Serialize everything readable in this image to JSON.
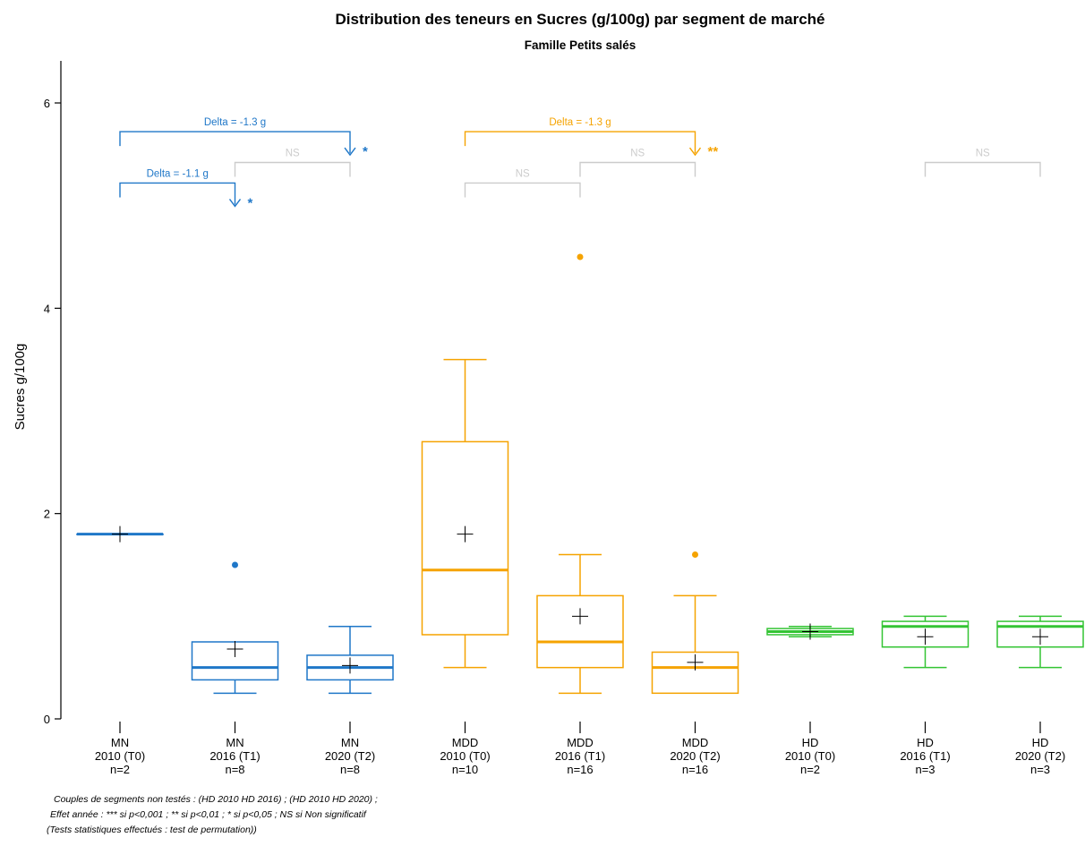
{
  "chart_data": {
    "type": "box",
    "title": "Distribution des teneurs en Sucres (g/100g) par segment de marché",
    "subtitle": "Famille Petits salés",
    "ylabel": "Sucres g/100g",
    "xlabel": "",
    "ylim": [
      0,
      6.4
    ],
    "yticks": [
      0,
      2,
      4,
      6
    ],
    "grid": false,
    "colors": {
      "MN": "#1f77c8",
      "MDD": "#f5a300",
      "HD": "#33c433",
      "NS": "#cccccc",
      "mean": "#000000"
    },
    "categories": [
      {
        "segment": "MN",
        "year": "2010 (T0)",
        "n": "n=2",
        "color_key": "MN",
        "min": 1.8,
        "q1": 1.8,
        "median": 1.8,
        "q3": 1.8,
        "max": 1.8,
        "mean": 1.8,
        "outliers": []
      },
      {
        "segment": "MN",
        "year": "2016 (T1)",
        "n": "n=8",
        "color_key": "MN",
        "min": 0.25,
        "q1": 0.38,
        "median": 0.5,
        "q3": 0.75,
        "max": 0.75,
        "mean": 0.68,
        "outliers": [
          1.5
        ]
      },
      {
        "segment": "MN",
        "year": "2020 (T2)",
        "n": "n=8",
        "color_key": "MN",
        "min": 0.25,
        "q1": 0.38,
        "median": 0.5,
        "q3": 0.62,
        "max": 0.9,
        "mean": 0.52,
        "outliers": []
      },
      {
        "segment": "MDD",
        "year": "2010 (T0)",
        "n": "n=10",
        "color_key": "MDD",
        "min": 0.5,
        "q1": 0.82,
        "median": 1.45,
        "q3": 2.7,
        "max": 3.5,
        "mean": 1.8,
        "outliers": []
      },
      {
        "segment": "MDD",
        "year": "2016 (T1)",
        "n": "n=16",
        "color_key": "MDD",
        "min": 0.25,
        "q1": 0.5,
        "median": 0.75,
        "q3": 1.2,
        "max": 1.6,
        "mean": 1.0,
        "outliers": [
          4.5
        ]
      },
      {
        "segment": "MDD",
        "year": "2020 (T2)",
        "n": "n=16",
        "color_key": "MDD",
        "min": 0.25,
        "q1": 0.25,
        "median": 0.5,
        "q3": 0.65,
        "max": 1.2,
        "mean": 0.55,
        "outliers": [
          1.6
        ]
      },
      {
        "segment": "HD",
        "year": "2010 (T0)",
        "n": "n=2",
        "color_key": "HD",
        "min": 0.8,
        "q1": 0.82,
        "median": 0.85,
        "q3": 0.88,
        "max": 0.9,
        "mean": 0.85,
        "outliers": []
      },
      {
        "segment": "HD",
        "year": "2016 (T1)",
        "n": "n=3",
        "color_key": "HD",
        "min": 0.5,
        "q1": 0.7,
        "median": 0.9,
        "q3": 0.95,
        "max": 1.0,
        "mean": 0.8,
        "outliers": []
      },
      {
        "segment": "HD",
        "year": "2020 (T2)",
        "n": "n=3",
        "color_key": "HD",
        "min": 0.5,
        "q1": 0.7,
        "median": 0.9,
        "q3": 0.95,
        "max": 1.0,
        "mean": 0.8,
        "outliers": []
      }
    ],
    "comparisons": [
      {
        "from": 0,
        "to": 2,
        "level": 5.72,
        "label": "Delta = -1.3 g",
        "significance": "*",
        "color_key": "MN",
        "arrow": true
      },
      {
        "from": 1,
        "to": 2,
        "level": 5.42,
        "label": "NS",
        "significance": "",
        "color_key": "NS",
        "arrow": false
      },
      {
        "from": 0,
        "to": 1,
        "level": 5.22,
        "label": "Delta = -1.1 g",
        "significance": "*",
        "color_key": "MN",
        "arrow": true
      },
      {
        "from": 3,
        "to": 5,
        "level": 5.72,
        "label": "Delta = -1.3 g",
        "significance": "**",
        "color_key": "MDD",
        "arrow": true
      },
      {
        "from": 4,
        "to": 5,
        "level": 5.42,
        "label": "NS",
        "significance": "",
        "color_key": "NS",
        "arrow": false
      },
      {
        "from": 3,
        "to": 4,
        "level": 5.22,
        "label": "NS",
        "significance": "",
        "color_key": "NS",
        "arrow": false
      },
      {
        "from": 7,
        "to": 8,
        "level": 5.42,
        "label": "NS",
        "significance": "",
        "color_key": "NS",
        "arrow": false
      }
    ],
    "footnotes": [
      "Couples de segments non testés : (HD 2010 HD 2016) ; (HD 2010 HD 2020) ;",
      "Effet année : *** si p<0,001 ; ** si p<0,01 ; * si p<0,05 ; NS si Non significatif",
      "(Tests statistiques effectués : test de permutation))"
    ]
  }
}
